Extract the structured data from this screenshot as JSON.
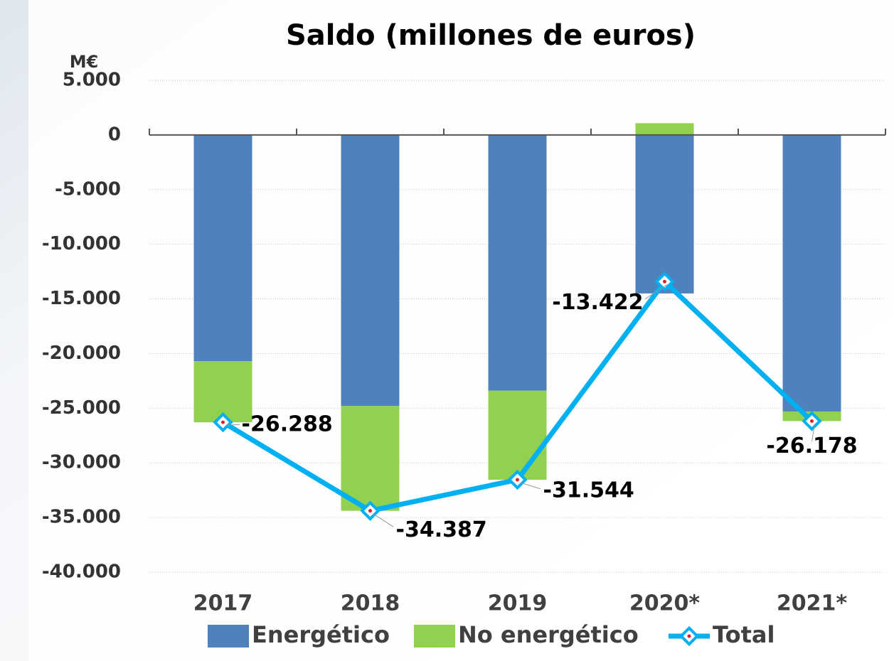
{
  "chart_data": {
    "type": "bar-line",
    "title": "Saldo (millones de euros)",
    "y_unit": "M€",
    "categories": [
      "2017",
      "2018",
      "2019",
      "2020*",
      "2021*"
    ],
    "series": [
      {
        "name": "Energético",
        "type": "bar",
        "color": "#4f81bd",
        "values": [
          -20700,
          -24800,
          -23400,
          -14500,
          -25300
        ]
      },
      {
        "name": "No energético",
        "type": "bar",
        "color": "#92d050",
        "values": [
          -5588,
          -9587,
          -8144,
          1078,
          -878
        ]
      },
      {
        "name": "Total",
        "type": "line",
        "color": "#00b0f0",
        "marker_color": "#e0202a",
        "values": [
          -26288,
          -34387,
          -31544,
          -13422,
          -26178
        ],
        "value_labels": [
          "-26.288",
          "-34.387",
          "-31.544",
          "-13.422",
          "-26.178"
        ]
      }
    ],
    "ylim": [
      -40000,
      5000
    ],
    "yticks": [
      {
        "value": -40000,
        "label": "-40.000"
      },
      {
        "value": -35000,
        "label": "-35.000"
      },
      {
        "value": -30000,
        "label": "-30.000"
      },
      {
        "value": -25000,
        "label": "-25.000"
      },
      {
        "value": -20000,
        "label": "-20.000"
      },
      {
        "value": -15000,
        "label": "-15.000"
      },
      {
        "value": -10000,
        "label": "-10.000"
      },
      {
        "value": -5000,
        "label": "-5.000"
      },
      0,
      {
        "value": 5000,
        "label": "5.000"
      }
    ],
    "grid": true,
    "legend": "bottom"
  }
}
